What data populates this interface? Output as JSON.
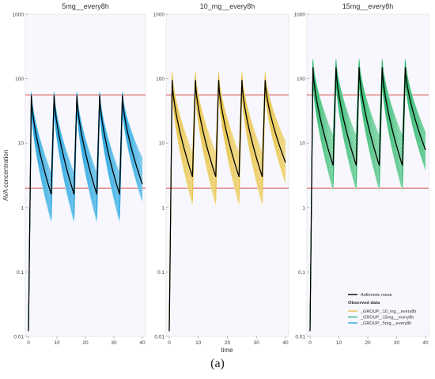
{
  "caption": "(a)",
  "chart_data": {
    "type": "line",
    "y_axis_label": "AVA concentration",
    "x_axis_label": "time",
    "y_scale": "log",
    "ylim": [
      0.01,
      1000
    ],
    "xlim": [
      0,
      40
    ],
    "x_ticks": [
      "0",
      "10",
      "20",
      "30",
      "40"
    ],
    "y_ticks": [
      "0.01",
      "0.1",
      "1",
      "10",
      "100",
      "1000"
    ],
    "y_tick_values": [
      0.01,
      0.1,
      1,
      10,
      100,
      1000
    ],
    "x_tick_values": [
      0,
      10,
      20,
      30,
      40
    ],
    "reference_lines": [
      {
        "y": 56,
        "color": "#d9534f"
      },
      {
        "y": 2,
        "color": "#d9534f"
      }
    ],
    "dose_times": [
      0,
      8,
      16,
      24,
      32
    ],
    "panels": [
      {
        "title": "5mg__every8h",
        "band_color": "#29a7e0",
        "band_light_color": "#b9e4f5",
        "mean": {
          "peak": 55,
          "trough": 1.6,
          "end": 2.3
        },
        "spread": {
          "peak_hi": 62,
          "peak_lo": 38,
          "trough_hi": 3.2,
          "trough_lo": 0.65,
          "end_hi": 5.5,
          "end_lo": 1.3
        }
      },
      {
        "title": "10_mg__every8h",
        "band_color": "#e8c44a",
        "band_light_color": "#f6e7b4",
        "mean": {
          "peak": 95,
          "trough": 3.0,
          "end": 5.0
        },
        "spread": {
          "peak_hi": 125,
          "peak_lo": 70,
          "trough_hi": 6.5,
          "trough_lo": 1.2,
          "end_hi": 10,
          "end_lo": 2.5
        }
      },
      {
        "title": "15mg__every8h",
        "band_color": "#2eb86c",
        "band_light_color": "#bfead3",
        "mean": {
          "peak": 150,
          "trough": 4.5,
          "end": 7.8
        },
        "spread": {
          "peak_hi": 200,
          "peak_lo": 100,
          "trough_hi": 12,
          "trough_lo": 2.0,
          "end_hi": 14,
          "end_lo": 4.0
        }
      }
    ],
    "legend": {
      "mean_label": "Arithmetic mean",
      "mean_color": "#000000",
      "observed_title": "Observed data",
      "items": [
        {
          "label": "_GROUP_:10_mg__every8h",
          "color": "#e8c44a"
        },
        {
          "label": "_GROUP_:15mg__every8h",
          "color": "#2eb86c"
        },
        {
          "label": "_GROUP_:5mg__every8h",
          "color": "#29a7e0"
        }
      ]
    }
  }
}
